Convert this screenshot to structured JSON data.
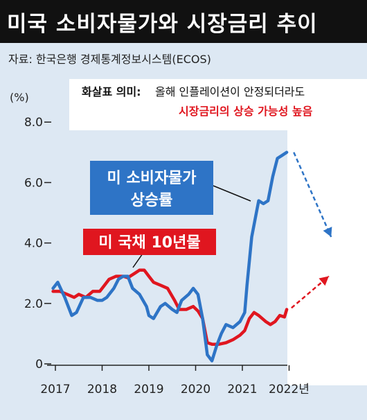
{
  "title": "미국 소비자물가와 시장금리 추이",
  "source": "자료: 한국은행 경제통계정보시스템(ECOS)",
  "note": {
    "heading": "화살표 의미:",
    "line1_rest": "올해 인플레이션이 안정되더라도",
    "line2": "시장금리의 상승 가능성 높음"
  },
  "colors": {
    "cpi": "#2e74c6",
    "bond": "#e0161f",
    "cpi_label_bg": "#2e74c6",
    "bond_label_bg": "#e0161f",
    "background": "#dde8f3"
  },
  "chart_data": {
    "type": "line",
    "ylabel": "(%)",
    "y_ticks": [
      "8.0",
      "6.0",
      "4.0",
      "2.0",
      "0"
    ],
    "x_ticks": [
      "2017",
      "2018",
      "2019",
      "2020",
      "2021",
      "2022년"
    ],
    "ylim": [
      0,
      8
    ],
    "xlim": [
      2017,
      2023.2
    ],
    "series": [
      {
        "name": "미 소비자물가 상승률",
        "label_lines": [
          "미 소비자물가",
          "상승률"
        ],
        "color": "#2e74c6",
        "x": [
          2016.95,
          2017.05,
          2017.2,
          2017.35,
          2017.45,
          2017.6,
          2017.75,
          2017.9,
          2018.0,
          2018.1,
          2018.25,
          2018.35,
          2018.45,
          2018.55,
          2018.65,
          2018.8,
          2018.95,
          2019.0,
          2019.1,
          2019.25,
          2019.35,
          2019.5,
          2019.6,
          2019.7,
          2019.85,
          2019.95,
          2020.05,
          2020.15,
          2020.25,
          2020.35,
          2020.45,
          2020.55,
          2020.65,
          2020.8,
          2020.95,
          2021.05,
          2021.1,
          2021.2,
          2021.3,
          2021.35,
          2021.45,
          2021.55,
          2021.65,
          2021.75,
          2021.85,
          2021.95
        ],
        "values": [
          2.5,
          2.7,
          2.2,
          1.6,
          1.7,
          2.2,
          2.2,
          2.1,
          2.1,
          2.2,
          2.5,
          2.8,
          2.9,
          2.9,
          2.5,
          2.3,
          1.9,
          1.6,
          1.5,
          1.9,
          2.0,
          1.8,
          1.7,
          2.1,
          2.3,
          2.5,
          2.3,
          1.5,
          0.3,
          0.1,
          0.6,
          1.0,
          1.3,
          1.2,
          1.4,
          1.7,
          2.6,
          4.2,
          5.0,
          5.4,
          5.3,
          5.4,
          6.2,
          6.8,
          6.9,
          7.0
        ]
      },
      {
        "name": "미 국채 10년물",
        "label_lines": [
          "미 국채 10년물"
        ],
        "color": "#e0161f",
        "x": [
          2016.95,
          2017.1,
          2017.25,
          2017.4,
          2017.5,
          2017.65,
          2017.8,
          2017.95,
          2018.05,
          2018.15,
          2018.3,
          2018.45,
          2018.55,
          2018.7,
          2018.8,
          2018.9,
          2019.0,
          2019.1,
          2019.25,
          2019.4,
          2019.55,
          2019.65,
          2019.8,
          2019.95,
          2020.05,
          2020.15,
          2020.25,
          2020.35,
          2020.5,
          2020.65,
          2020.8,
          2020.95,
          2021.05,
          2021.15,
          2021.25,
          2021.35,
          2021.5,
          2021.6,
          2021.7,
          2021.8,
          2021.9,
          2021.95
        ],
        "values": [
          2.4,
          2.4,
          2.3,
          2.2,
          2.3,
          2.2,
          2.4,
          2.4,
          2.6,
          2.8,
          2.9,
          2.9,
          2.85,
          3.0,
          3.1,
          3.1,
          2.9,
          2.7,
          2.6,
          2.5,
          2.1,
          1.8,
          1.8,
          1.9,
          1.75,
          1.5,
          0.7,
          0.65,
          0.65,
          0.7,
          0.8,
          0.95,
          1.1,
          1.5,
          1.7,
          1.6,
          1.4,
          1.3,
          1.4,
          1.6,
          1.55,
          1.8
        ]
      }
    ],
    "projection_arrows": [
      {
        "series": "미 소비자물가 상승률",
        "color": "#2e74c6",
        "from": [
          2022.1,
          7.0
        ],
        "to": [
          2022.9,
          4.2
        ]
      },
      {
        "series": "미 국채 10년물",
        "color": "#e0161f",
        "from": [
          2022.05,
          1.85
        ],
        "to": [
          2022.85,
          2.9
        ]
      }
    ]
  }
}
